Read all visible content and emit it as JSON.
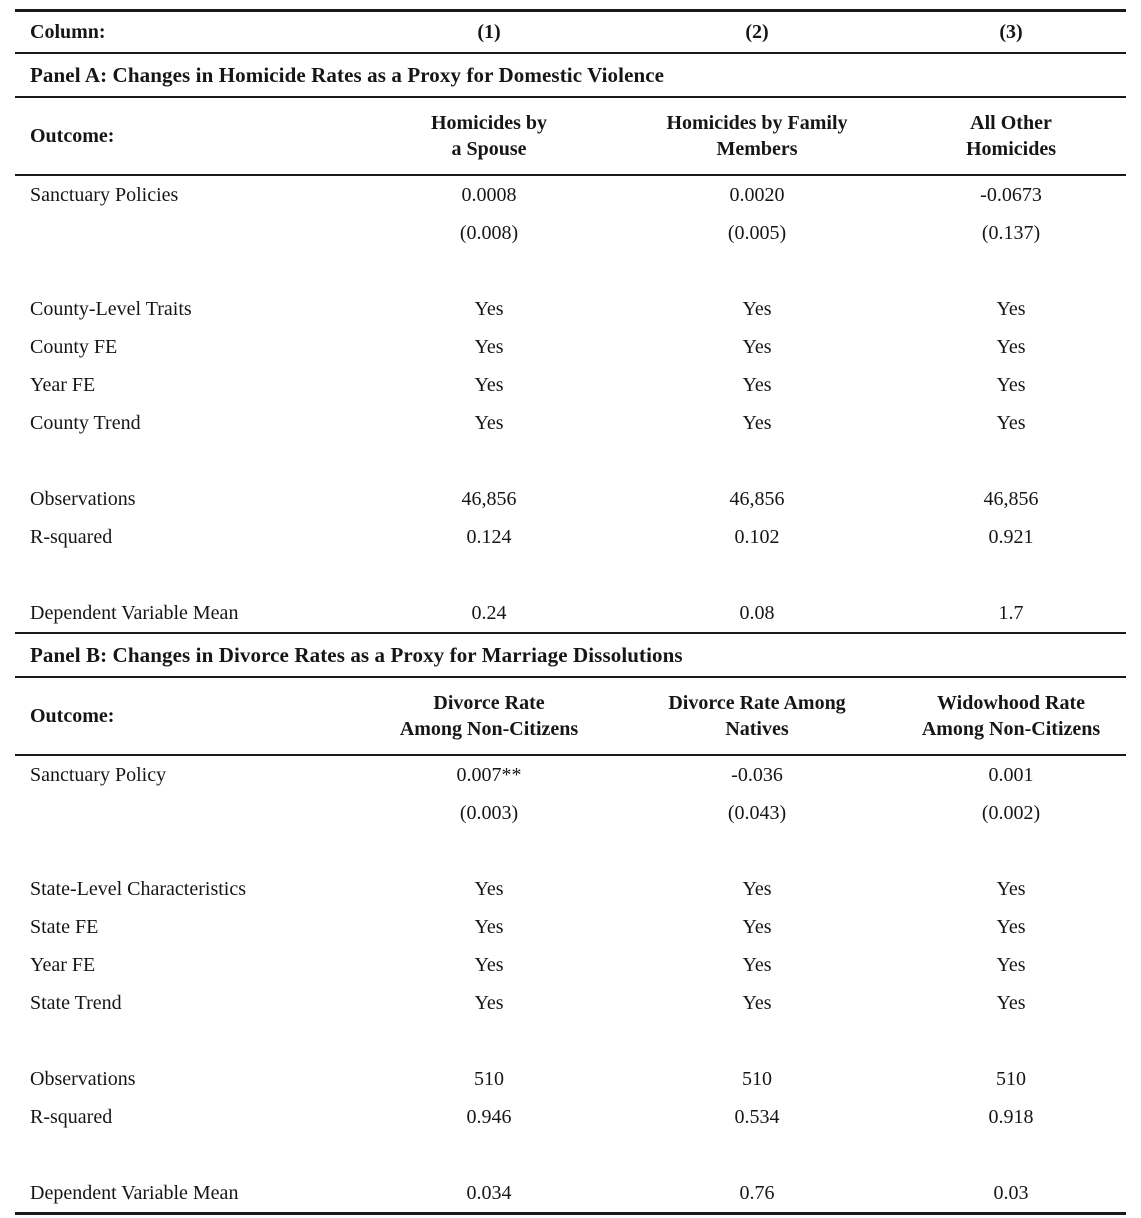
{
  "column_row": {
    "label": "Column:",
    "numbers": [
      "(1)",
      "(2)",
      "(3)"
    ]
  },
  "panels": [
    {
      "title": "Panel A: Changes in Homicide Rates as a Proxy for Domestic Violence",
      "outcome_label": "Outcome:",
      "headers": [
        [
          "Homicides by",
          "a Spouse"
        ],
        [
          "Homicides by Family",
          "Members"
        ],
        [
          "All Other",
          "Homicides"
        ]
      ],
      "rows": [
        {
          "label": "Sanctuary Policies",
          "values": [
            "0.0008",
            "0.0020",
            "-0.0673"
          ]
        },
        {
          "label": "",
          "values": [
            "(0.008)",
            "(0.005)",
            "(0.137)"
          ]
        },
        {
          "blank": true
        },
        {
          "label": "County-Level Traits",
          "values": [
            "Yes",
            "Yes",
            "Yes"
          ]
        },
        {
          "label": "County FE",
          "values": [
            "Yes",
            "Yes",
            "Yes"
          ]
        },
        {
          "label": "Year FE",
          "values": [
            "Yes",
            "Yes",
            "Yes"
          ]
        },
        {
          "label": "County Trend",
          "values": [
            "Yes",
            "Yes",
            "Yes"
          ]
        },
        {
          "blank": true
        },
        {
          "label": "Observations",
          "values": [
            "46,856",
            "46,856",
            "46,856"
          ]
        },
        {
          "label": "R-squared",
          "values": [
            "0.124",
            "0.102",
            "0.921"
          ]
        },
        {
          "blank": true
        },
        {
          "label": "Dependent Variable Mean",
          "values": [
            "0.24",
            "0.08",
            "1.7"
          ]
        }
      ]
    },
    {
      "title": "Panel B: Changes in Divorce Rates as a Proxy for Marriage Dissolutions",
      "outcome_label": "Outcome:",
      "headers": [
        [
          "Divorce Rate",
          "Among Non-Citizens"
        ],
        [
          "Divorce Rate Among",
          "Natives"
        ],
        [
          "Widowhood Rate",
          "Among Non-Citizens"
        ]
      ],
      "rows": [
        {
          "label": "Sanctuary Policy",
          "values": [
            "0.007**",
            "-0.036",
            "0.001"
          ]
        },
        {
          "label": "",
          "values": [
            "(0.003)",
            "(0.043)",
            "(0.002)"
          ]
        },
        {
          "blank": true
        },
        {
          "label": "State-Level Characteristics",
          "values": [
            "Yes",
            "Yes",
            "Yes"
          ]
        },
        {
          "label": "State FE",
          "values": [
            "Yes",
            "Yes",
            "Yes"
          ]
        },
        {
          "label": "Year FE",
          "values": [
            "Yes",
            "Yes",
            "Yes"
          ]
        },
        {
          "label": "State Trend",
          "values": [
            "Yes",
            "Yes",
            "Yes"
          ]
        },
        {
          "blank": true
        },
        {
          "label": "Observations",
          "values": [
            "510",
            "510",
            "510"
          ]
        },
        {
          "label": "R-squared",
          "values": [
            "0.946",
            "0.534",
            "0.918"
          ]
        },
        {
          "blank": true
        },
        {
          "label": "Dependent Variable Mean",
          "values": [
            "0.034",
            "0.76",
            "0.03"
          ]
        }
      ]
    }
  ]
}
